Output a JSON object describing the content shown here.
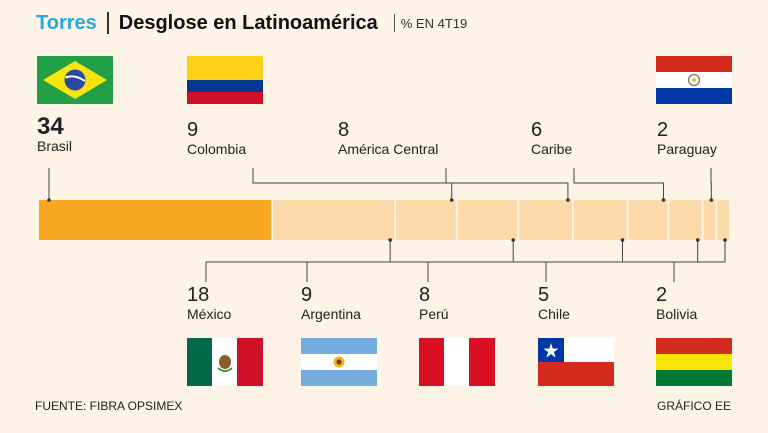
{
  "header": {
    "brand": "Torres",
    "title": "Desglose en Latinoamérica",
    "subtitle": "% EN 4T19"
  },
  "chart_data": {
    "type": "bar",
    "subtype": "stacked-100",
    "title": "Desglose en Latinoamérica",
    "unit": "%",
    "categories": [
      "Brasil",
      "México",
      "Colombia",
      "Argentina",
      "América Central",
      "Perú",
      "Caribe",
      "Chile",
      "Paraguay",
      "Bolivia"
    ],
    "values": [
      34,
      18,
      9,
      9,
      8,
      8,
      6,
      5,
      2,
      2
    ],
    "colors": {
      "highlight": "#f7a823",
      "rest": "#fbd9a8"
    }
  },
  "top_labels": [
    {
      "id": "brasil",
      "value": "34",
      "name": "Brasil"
    },
    {
      "id": "colombia",
      "value": "9",
      "name": "Colombia"
    },
    {
      "id": "america-central",
      "value": "8",
      "name": "América Central"
    },
    {
      "id": "caribe",
      "value": "6",
      "name": "Caribe"
    },
    {
      "id": "paraguay",
      "value": "2",
      "name": "Paraguay"
    }
  ],
  "bottom_labels": [
    {
      "id": "mexico",
      "value": "18",
      "name": "México"
    },
    {
      "id": "argentina",
      "value": "9",
      "name": "Argentina"
    },
    {
      "id": "peru",
      "value": "8",
      "name": "Perú"
    },
    {
      "id": "chile",
      "value": "5",
      "name": "Chile"
    },
    {
      "id": "bolivia",
      "value": "2",
      "name": "Bolivia"
    }
  ],
  "footer": {
    "source": "FUENTE: FIBRA OPSIMEX",
    "credit": "GRÁFICO EE"
  }
}
